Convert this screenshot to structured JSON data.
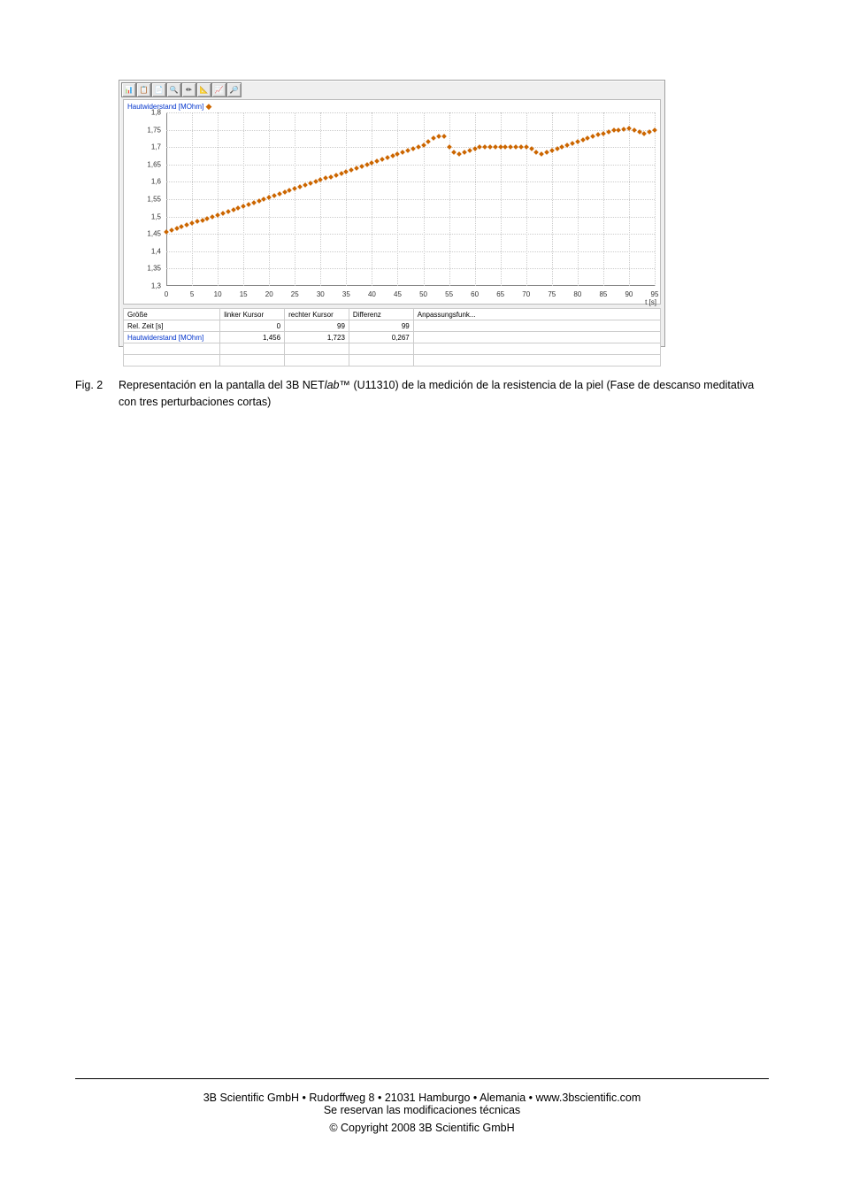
{
  "chart": {
    "type": "scatter",
    "axis_title": "Hautwiderstand [MOhm]",
    "marker_color": "#cc6600",
    "grid_color": "#cccccc",
    "axis_color": "#888888",
    "label_color": "#0033cc",
    "background_color": "#ffffff",
    "panel_background": "#efefef",
    "marker_style": "diamond",
    "marker_size": 4,
    "x_unit": "t [s]",
    "xlim": [
      0,
      95
    ],
    "ylim": [
      1.3,
      1.8
    ],
    "y_ticks": [
      "1,3",
      "1,35",
      "1,4",
      "1,45",
      "1,5",
      "1,55",
      "1,6",
      "1,65",
      "1,7",
      "1,75",
      "1,8"
    ],
    "y_tick_values": [
      1.3,
      1.35,
      1.4,
      1.45,
      1.5,
      1.55,
      1.6,
      1.65,
      1.7,
      1.75,
      1.8
    ],
    "x_ticks": [
      "0",
      "5",
      "10",
      "15",
      "20",
      "25",
      "30",
      "35",
      "40",
      "45",
      "50",
      "55",
      "60",
      "65",
      "70",
      "75",
      "80",
      "85",
      "90",
      "95"
    ],
    "x_tick_values": [
      0,
      5,
      10,
      15,
      20,
      25,
      30,
      35,
      40,
      45,
      50,
      55,
      60,
      65,
      70,
      75,
      80,
      85,
      90,
      95
    ],
    "data_x": [
      0,
      1,
      2,
      3,
      4,
      5,
      6,
      7,
      8,
      9,
      10,
      11,
      12,
      13,
      14,
      15,
      16,
      17,
      18,
      19,
      20,
      21,
      22,
      23,
      24,
      25,
      26,
      27,
      28,
      29,
      30,
      31,
      32,
      33,
      34,
      35,
      36,
      37,
      38,
      39,
      40,
      41,
      42,
      43,
      44,
      45,
      46,
      47,
      48,
      49,
      50,
      51,
      52,
      53,
      54,
      55,
      56,
      57,
      58,
      59,
      60,
      61,
      62,
      63,
      64,
      65,
      66,
      67,
      68,
      69,
      70,
      71,
      72,
      73,
      74,
      75,
      76,
      77,
      78,
      79,
      80,
      81,
      82,
      83,
      84,
      85,
      86,
      87,
      88,
      89,
      90,
      91,
      92,
      93,
      94,
      95
    ],
    "data_y": [
      1.456,
      1.46,
      1.465,
      1.47,
      1.475,
      1.48,
      1.485,
      1.49,
      1.495,
      1.5,
      1.505,
      1.51,
      1.515,
      1.52,
      1.525,
      1.53,
      1.535,
      1.54,
      1.545,
      1.55,
      1.555,
      1.56,
      1.565,
      1.57,
      1.575,
      1.58,
      1.585,
      1.59,
      1.595,
      1.6,
      1.605,
      1.61,
      1.615,
      1.62,
      1.625,
      1.63,
      1.635,
      1.64,
      1.645,
      1.65,
      1.655,
      1.66,
      1.665,
      1.67,
      1.675,
      1.68,
      1.685,
      1.69,
      1.695,
      1.7,
      1.705,
      1.715,
      1.725,
      1.73,
      1.73,
      1.7,
      1.685,
      1.68,
      1.685,
      1.69,
      1.695,
      1.7,
      1.7,
      1.7,
      1.7,
      1.7,
      1.7,
      1.7,
      1.7,
      1.7,
      1.7,
      1.695,
      1.685,
      1.68,
      1.685,
      1.69,
      1.695,
      1.7,
      1.705,
      1.71,
      1.715,
      1.72,
      1.725,
      1.73,
      1.735,
      1.74,
      1.745,
      1.748,
      1.75,
      1.752,
      1.754,
      1.75,
      1.745,
      1.74,
      1.745,
      1.75
    ]
  },
  "toolbar_icons": [
    "📊",
    "📋",
    "📄",
    "🔍",
    "✏",
    "📐",
    "📈",
    "🔎"
  ],
  "table": {
    "headers": [
      "Größe",
      "linker Kursor",
      "rechter Kursor",
      "Differenz",
      "Anpassungsfunk..."
    ],
    "rows": [
      {
        "label": "Rel. Zeit [s]",
        "c1": "0",
        "c2": "99",
        "c3": "99",
        "c4": "",
        "blue": false
      },
      {
        "label": "Hautwiderstand [MOhm]",
        "c1": "1,456",
        "c2": "1,723",
        "c3": "0,267",
        "c4": "",
        "blue": true
      }
    ]
  },
  "caption": {
    "label": "Fig. 2",
    "text_before": "Representación en la pantalla del 3B NET",
    "text_italic": "lab",
    "text_tm": "™",
    "text_after": " (U11310) de la medición de la resistencia de la piel (Fase de descanso meditativa con tres perturbaciones cortas)"
  },
  "footer": {
    "line1": "3B Scientific GmbH • Rudorffweg 8 • 21031 Hamburgo • Alemania • www.3bscientific.com",
    "line2": "Se reservan las modificaciones técnicas",
    "line3": "© Copyright 2008 3B Scientific GmbH"
  }
}
